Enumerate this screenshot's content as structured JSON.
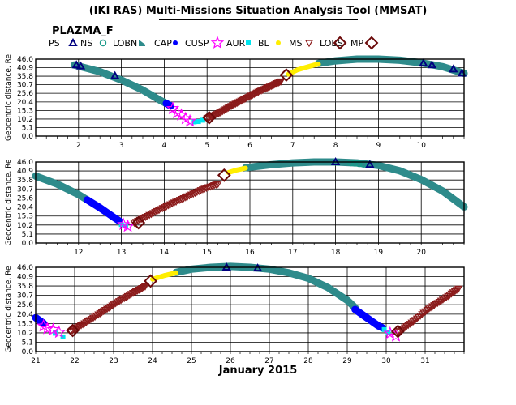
{
  "header": {
    "title": "(IKI RAS) Multi-Missions Situation Analysis Tool (MMSAT)",
    "subtitle": "PLAZMA_F"
  },
  "legend": [
    {
      "label": "PS",
      "marker": "triangle",
      "color": "#000080"
    },
    {
      "label": "NS",
      "marker": "circle",
      "color": "#1a9a8a"
    },
    {
      "label": "LOBN",
      "marker": "flag",
      "color": "#2e8b8b"
    },
    {
      "label": "CAP",
      "marker": "dot",
      "color": "#0000ff"
    },
    {
      "label": "CUSP",
      "marker": "star",
      "color": "#ff00ff"
    },
    {
      "label": "AUR",
      "marker": "square",
      "color": "#00e5ee"
    },
    {
      "label": "BL",
      "marker": "dot",
      "color": "#ffee00"
    },
    {
      "label": "MS",
      "marker": "triangle-down",
      "color": "#8b1a1a"
    },
    {
      "label": "LOBS",
      "marker": "diamond",
      "color": "#6b0a0a"
    },
    {
      "label": "MP",
      "marker": "none",
      "color": "#000000"
    }
  ],
  "colors": {
    "PS": "#000080",
    "NS": "#1a9a8a",
    "LOBN": "#2e8b8b",
    "CAP": "#0000ff",
    "CUSP": "#ff00ff",
    "AUR": "#00e5ee",
    "BL": "#ffee00",
    "MS": "#8b1a1a",
    "MP": "#6b0a0a"
  },
  "chart_data": {
    "type": "scatter",
    "title": "(IKI RAS) Multi-Missions Situation Analysis Tool (MMSAT)",
    "subtitle": "PLAZMA_F",
    "ylabel": "Geocentric distance, Re",
    "xlabel": "January 2015",
    "ylim": [
      0,
      46
    ],
    "yticks": [
      0.0,
      5.1,
      10.2,
      15.3,
      20.4,
      25.6,
      30.7,
      35.8,
      40.9,
      46.0
    ],
    "grid": true,
    "panels": [
      {
        "xlim": [
          1,
          11
        ],
        "xticks": [
          2,
          3,
          4,
          5,
          6,
          7,
          8,
          9,
          10
        ],
        "series": [
          {
            "region": "LOBN",
            "points": [
              [
                1.9,
                42.5
              ],
              [
                2.5,
                38.5
              ],
              [
                3.0,
                33.5
              ],
              [
                3.5,
                27.5
              ],
              [
                3.9,
                21.5
              ],
              [
                4.05,
                19.5
              ]
            ]
          },
          {
            "region": "PS",
            "points": [
              [
                1.95,
                42.5
              ],
              [
                2.05,
                41.8
              ],
              [
                2.85,
                36.0
              ],
              [
                10.05,
                43.5
              ],
              [
                10.25,
                42.5
              ],
              [
                10.75,
                40.0
              ],
              [
                10.95,
                37.5
              ]
            ]
          },
          {
            "region": "CAP",
            "points": [
              [
                4.05,
                19.5
              ],
              [
                4.15,
                18.0
              ]
            ]
          },
          {
            "region": "CUSP",
            "points": [
              [
                4.2,
                16.5
              ],
              [
                4.3,
                14.0
              ],
              [
                4.4,
                12.5
              ],
              [
                4.5,
                10.5
              ],
              [
                4.6,
                9.0
              ]
            ]
          },
          {
            "region": "AUR",
            "points": [
              [
                4.7,
                8.5
              ],
              [
                4.8,
                8.7
              ],
              [
                4.9,
                9.5
              ]
            ]
          },
          {
            "region": "MS",
            "points": [
              [
                5.0,
                10.5
              ],
              [
                5.3,
                14.0
              ],
              [
                5.6,
                18.5
              ],
              [
                5.9,
                22.5
              ],
              [
                6.2,
                26.5
              ],
              [
                6.5,
                30.0
              ],
              [
                6.75,
                33.0
              ]
            ]
          },
          {
            "region": "MP",
            "points": [
              [
                5.05,
                11.0
              ],
              [
                6.85,
                36.5
              ]
            ]
          },
          {
            "region": "BL",
            "points": [
              [
                6.9,
                37.0
              ],
              [
                7.1,
                39.5
              ],
              [
                7.3,
                41.0
              ],
              [
                7.5,
                42.5
              ],
              [
                7.6,
                43.0
              ]
            ]
          },
          {
            "region": "LOBN",
            "points": [
              [
                7.6,
                43.5
              ],
              [
                8.0,
                45.0
              ],
              [
                8.5,
                46.0
              ],
              [
                9.0,
                46.0
              ],
              [
                9.5,
                45.3
              ],
              [
                10.0,
                43.8
              ],
              [
                10.5,
                41.5
              ],
              [
                11.0,
                37.5
              ]
            ]
          }
        ]
      },
      {
        "xlim": [
          11,
          21
        ],
        "xticks": [
          12,
          13,
          14,
          15,
          16,
          17,
          18,
          19,
          20
        ],
        "series": [
          {
            "region": "LOBN",
            "points": [
              [
                11.0,
                38.0
              ],
              [
                11.5,
                33.5
              ],
              [
                12.0,
                27.5
              ],
              [
                12.2,
                24.5
              ]
            ]
          },
          {
            "region": "CAP",
            "points": [
              [
                12.2,
                24.5
              ],
              [
                12.5,
                20.0
              ],
              [
                12.8,
                15.0
              ],
              [
                12.95,
                12.5
              ]
            ]
          },
          {
            "region": "CUSP",
            "points": [
              [
                13.05,
                10.5
              ],
              [
                13.15,
                9.5
              ]
            ]
          },
          {
            "region": "AUR",
            "points": [
              [
                13.0,
                10.5
              ],
              [
                13.1,
                9.8
              ]
            ]
          },
          {
            "region": "MS",
            "points": [
              [
                13.3,
                11.5
              ],
              [
                13.7,
                16.5
              ],
              [
                14.1,
                21.5
              ],
              [
                14.5,
                26.0
              ],
              [
                14.9,
                30.5
              ],
              [
                15.3,
                34.0
              ]
            ]
          },
          {
            "region": "MP",
            "points": [
              [
                13.4,
                11.5
              ],
              [
                15.4,
                38.5
              ]
            ]
          },
          {
            "region": "BL",
            "points": [
              [
                15.5,
                40.0
              ],
              [
                15.7,
                41.5
              ],
              [
                15.9,
                42.5
              ]
            ]
          },
          {
            "region": "LOBN",
            "points": [
              [
                15.9,
                42.8
              ],
              [
                16.5,
                44.5
              ],
              [
                17.0,
                45.5
              ],
              [
                17.5,
                46.0
              ],
              [
                18.0,
                46.0
              ],
              [
                18.5,
                45.5
              ],
              [
                19.0,
                44.0
              ],
              [
                19.5,
                41.0
              ],
              [
                20.0,
                36.0
              ],
              [
                20.5,
                29.5
              ],
              [
                21.0,
                20.5
              ]
            ]
          },
          {
            "region": "PS",
            "points": [
              [
                18.0,
                46.0
              ],
              [
                18.8,
                44.5
              ]
            ]
          },
          {
            "region": "NS",
            "points": [
              [
                18.35,
                45.5
              ],
              [
                18.45,
                45.3
              ],
              [
                18.55,
                45.0
              ],
              [
                18.65,
                44.7
              ]
            ]
          }
        ]
      },
      {
        "xlim": [
          21,
          32
        ],
        "xticks": [
          21,
          22,
          23,
          24,
          25,
          26,
          27,
          28,
          29,
          30,
          31
        ],
        "series": [
          {
            "region": "CAP",
            "points": [
              [
                21.0,
                18.5
              ],
              [
                21.2,
                15.5
              ]
            ]
          },
          {
            "region": "CUSP",
            "points": [
              [
                21.2,
                14.0
              ],
              [
                21.3,
                12.5
              ],
              [
                21.45,
                12.0
              ],
              [
                21.6,
                10.5
              ]
            ]
          },
          {
            "region": "AUR",
            "points": [
              [
                21.5,
                10.0
              ],
              [
                21.7,
                8.0
              ]
            ]
          },
          {
            "region": "MS",
            "points": [
              [
                21.9,
                11.0
              ],
              [
                22.3,
                16.0
              ],
              [
                22.7,
                21.5
              ],
              [
                23.1,
                27.0
              ],
              [
                23.5,
                32.0
              ],
              [
                23.85,
                36.0
              ]
            ]
          },
          {
            "region": "MP",
            "points": [
              [
                21.95,
                11.5
              ],
              [
                23.95,
                38.5
              ]
            ]
          },
          {
            "region": "BL",
            "points": [
              [
                24.0,
                39.5
              ],
              [
                24.3,
                41.5
              ],
              [
                24.6,
                43.0
              ]
            ]
          },
          {
            "region": "LOBN",
            "points": [
              [
                24.6,
                43.2
              ],
              [
                25.0,
                45.0
              ],
              [
                25.5,
                46.0
              ],
              [
                26.0,
                46.5
              ],
              [
                26.5,
                46.0
              ],
              [
                27.0,
                45.0
              ],
              [
                27.5,
                43.0
              ],
              [
                28.0,
                40.0
              ],
              [
                28.5,
                35.0
              ],
              [
                29.0,
                28.0
              ],
              [
                29.2,
                24.0
              ]
            ]
          },
          {
            "region": "PS",
            "points": [
              [
                25.9,
                46.0
              ],
              [
                26.7,
                45.5
              ]
            ]
          },
          {
            "region": "CAP",
            "points": [
              [
                29.2,
                23.0
              ],
              [
                29.5,
                18.5
              ],
              [
                29.8,
                14.0
              ],
              [
                29.9,
                13.0
              ]
            ]
          },
          {
            "region": "AUR",
            "points": [
              [
                29.95,
                12.0
              ],
              [
                30.05,
                10.5
              ]
            ]
          },
          {
            "region": "CUSP",
            "points": [
              [
                30.1,
                10.0
              ],
              [
                30.25,
                8.5
              ]
            ]
          },
          {
            "region": "MS",
            "points": [
              [
                30.3,
                10.5
              ],
              [
                30.7,
                16.5
              ],
              [
                31.1,
                23.5
              ],
              [
                31.5,
                29.0
              ],
              [
                31.9,
                35.0
              ]
            ]
          },
          {
            "region": "MP",
            "points": [
              [
                30.3,
                11.0
              ]
            ]
          }
        ]
      }
    ]
  }
}
